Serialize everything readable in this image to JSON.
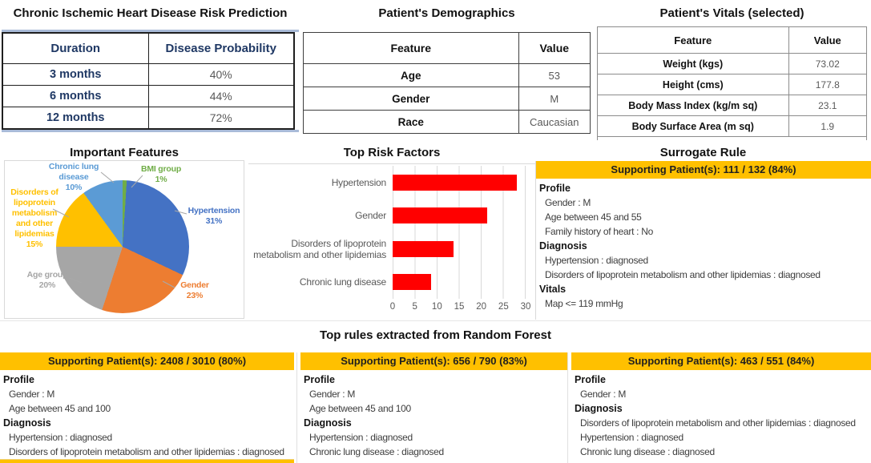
{
  "risk_table": {
    "title": "Chronic Ischemic Heart Disease Risk Prediction",
    "headers": [
      "Duration",
      "Disease Probability"
    ],
    "rows": [
      {
        "label": "3 months",
        "value": "40%"
      },
      {
        "label": "6 months",
        "value": "44%"
      },
      {
        "label": "12 months",
        "value": "72%"
      }
    ]
  },
  "demographics": {
    "title": "Patient's Demographics",
    "headers": [
      "Feature",
      "Value"
    ],
    "rows": [
      {
        "feature": "Age",
        "value": "53"
      },
      {
        "feature": "Gender",
        "value": "M"
      },
      {
        "feature": "Race",
        "value": "Caucasian"
      }
    ]
  },
  "vitals": {
    "title": "Patient's Vitals (selected)",
    "headers": [
      "Feature",
      "Value"
    ],
    "rows": [
      {
        "feature": "Weight (kgs)",
        "value": "73.02"
      },
      {
        "feature": "Height (cms)",
        "value": "177.8"
      },
      {
        "feature": "Body Mass Index (kg/m sq)",
        "value": "23.1"
      },
      {
        "feature": "Body Surface Area (m sq)",
        "value": "1.9"
      }
    ]
  },
  "chart_data": [
    {
      "type": "pie",
      "title": "Important Features",
      "start": "top",
      "direction": "clockwise",
      "slices": [
        {
          "key": "bmi",
          "label": "BMI group",
          "pct": 1,
          "color": "#70AD47"
        },
        {
          "key": "hyp",
          "label": "Hypertension",
          "pct": 31,
          "color": "#4472C4"
        },
        {
          "key": "gender",
          "label": "Gender",
          "pct": 23,
          "color": "#ED7D31"
        },
        {
          "key": "age",
          "label": "Age group",
          "pct": 20,
          "color": "#A6A6A6"
        },
        {
          "key": "lipo",
          "label": "Disorders of lipoprotein metabolism and other lipidemias",
          "pct": 15,
          "color": "#FFC000"
        },
        {
          "key": "lung",
          "label": "Chronic lung disease",
          "pct": 10,
          "color": "#5B9BD5"
        }
      ]
    },
    {
      "type": "bar",
      "title": "Top Risk Factors",
      "orientation": "horizontal",
      "categories": [
        "Hypertension",
        "Gender",
        "Disorders of lipoprotein metabolism and other lipidemias",
        "Chronic lung disease"
      ],
      "values": [
        28,
        21.3,
        13.7,
        8.7
      ],
      "xlim": [
        0,
        30
      ],
      "xticks": [
        0,
        5,
        10,
        15,
        20,
        25,
        30
      ],
      "bar_color": "#FF0000",
      "grid": true,
      "legend": "none"
    }
  ],
  "surrogate": {
    "title": "Surrogate Rule",
    "banner": "Supporting Patient(s): 111 / 132 (84%)",
    "sections": [
      {
        "title": "Profile",
        "items": [
          "Gender : M",
          "Age between 45 and 55",
          "Family history of heart : No"
        ]
      },
      {
        "title": "Diagnosis",
        "items": [
          "Hypertension : diagnosed",
          "Disorders of lipoprotein metabolism and other lipidemias : diagnosed"
        ]
      },
      {
        "title": "Vitals",
        "items": [
          "Map <= 119 mmHg"
        ]
      }
    ]
  },
  "forest": {
    "title": "Top rules extracted from Random Forest",
    "rules": [
      {
        "banner": "Supporting Patient(s): 2408 / 3010 (80%)",
        "sections": [
          {
            "title": "Profile",
            "items": [
              "Gender : M",
              "Age between 45 and 100"
            ]
          },
          {
            "title": "Diagnosis",
            "items": [
              "Hypertension : diagnosed",
              "Disorders of lipoprotein metabolism and other lipidemias : diagnosed"
            ]
          }
        ]
      },
      {
        "banner": "Supporting Patient(s): 656 / 790 (83%)",
        "sections": [
          {
            "title": "Profile",
            "items": [
              "Gender : M",
              "Age between 45 and 100"
            ]
          },
          {
            "title": "Diagnosis",
            "items": [
              "Hypertension : diagnosed",
              "Chronic lung disease : diagnosed"
            ]
          }
        ]
      },
      {
        "banner": "Supporting Patient(s): 463 / 551 (84%)",
        "sections": [
          {
            "title": "Profile",
            "items": [
              "Gender : M"
            ]
          },
          {
            "title": "Diagnosis",
            "items": [
              "Disorders of lipoprotein metabolism and other lipidemias : diagnosed",
              "Hypertension : diagnosed",
              "Chronic lung disease : diagnosed"
            ]
          }
        ]
      }
    ]
  },
  "colors": {
    "banner_gold": "#FFC000",
    "bar_red": "#FF0000",
    "risk_table_text": "#1F3864",
    "value_text": "#595959"
  }
}
